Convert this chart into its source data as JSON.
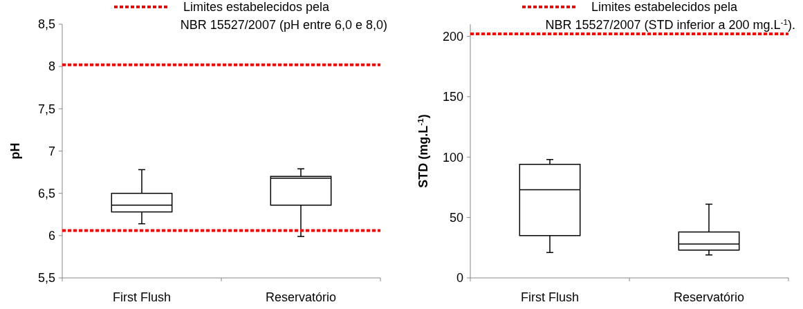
{
  "chart_data": [
    {
      "type": "box",
      "ylabel": "pH",
      "categories": [
        "First Flush",
        "Reservatório"
      ],
      "ylim": [
        5.5,
        8.5
      ],
      "yticks": [
        {
          "value": 5.5,
          "label": "5,5"
        },
        6,
        {
          "value": 6.5,
          "label": "6,5"
        },
        7,
        {
          "value": 7.5,
          "label": "7,5"
        },
        8,
        {
          "value": 8.5,
          "label": "8,5"
        }
      ],
      "boxes": [
        {
          "low": 6.14,
          "q1": 6.28,
          "median": 6.36,
          "q3": 6.5,
          "high": 6.78
        },
        {
          "low": 5.99,
          "q1": 6.36,
          "median": 6.68,
          "q3": 6.7,
          "high": 6.79
        }
      ],
      "ref_lines": [
        {
          "axis": "y",
          "value": 8.02,
          "label": "Limites estabelecidos pela NBR 15527/2007 (pH entre 6,0 e 8,0)",
          "color": "#ff0000",
          "line_style": "dotted"
        },
        {
          "axis": "y",
          "value": 6.06,
          "color": "#ff0000",
          "line_style": "dotted"
        }
      ],
      "legend": "top",
      "grid": false
    },
    {
      "type": "box",
      "ylabel": "STD (mg.L$^{-1}$)",
      "categories": [
        "First Flush",
        "Reservatório"
      ],
      "ylim": [
        0,
        210
      ],
      "yticks": [
        0,
        50,
        100,
        150,
        200
      ],
      "boxes": [
        {
          "low": 21,
          "q1": 35,
          "median": 73,
          "q3": 94,
          "high": 98
        },
        {
          "low": 19,
          "q1": 23,
          "median": 28,
          "q3": 38,
          "high": 61
        }
      ],
      "ref_lines": [
        {
          "axis": "y",
          "value": 202,
          "label": "Limites estabelecidos pela NBR 15527/2007 (STD inferior a 200 mg.L$^{-1}$).",
          "color": "#ff0000",
          "line_style": "dotted"
        }
      ],
      "legend": "top",
      "grid": false
    }
  ]
}
